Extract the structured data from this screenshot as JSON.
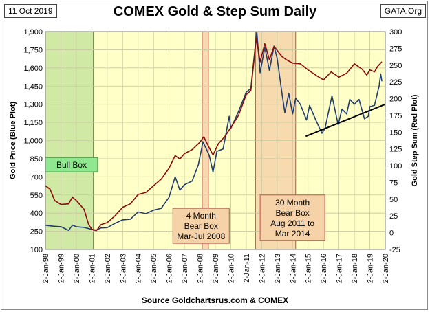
{
  "header": {
    "date": "11 Oct 2019",
    "site": "GATA.Org"
  },
  "footer": {
    "source": "Source Goldchartsrus.com & COMEX"
  },
  "colors": {
    "plot_bg": "#FFFFC8",
    "gold": "#1F3D6E",
    "step_sum": "#8B0A0A",
    "bull_box": "#C8E6A0",
    "bear_box": "#F5D2A8",
    "bear_box_border": "#C0504D"
  },
  "chart_data": {
    "type": "line",
    "title": "COMEX Gold & Step Sum Daily",
    "ylabel_left": "Gold Price    (Blue Plot)",
    "ylabel_right": "Gold Step Sum    (Red Plot)",
    "xlabel": "",
    "x_ticks": [
      "2-Jan-98",
      "2-Jan-99",
      "2-Jan-00",
      "2-Jan-01",
      "2-Jan-02",
      "2-Jan-03",
      "2-Jan-04",
      "2-Jan-05",
      "2-Jan-06",
      "2-Jan-07",
      "2-Jan-08",
      "2-Jan-09",
      "2-Jan-10",
      "2-Jan-11",
      "2-Jan-12",
      "2-Jan-13",
      "2-Jan-14",
      "2-Jan-15",
      "2-Jan-16",
      "2-Jan-17",
      "2-Jan-18",
      "2-Jan-19",
      "2-Jan-20"
    ],
    "x_range": [
      1998,
      2020
    ],
    "left_axis": {
      "range": [
        100,
        1900
      ],
      "ticks": [
        "100",
        "250",
        "400",
        "550",
        "700",
        "850",
        "1,000",
        "1,150",
        "1,300",
        "1,450",
        "1,600",
        "1,750",
        "1,900"
      ]
    },
    "right_axis": {
      "range": [
        -25,
        300
      ],
      "ticks": [
        "-25",
        "0",
        "25",
        "50",
        "75",
        "100",
        "125",
        "150",
        "175",
        "200",
        "225",
        "250",
        "275",
        "300"
      ]
    },
    "grid": true,
    "series": [
      {
        "name": "Gold Price",
        "axis": "left",
        "points": [
          [
            1998.0,
            300
          ],
          [
            1998.5,
            292
          ],
          [
            1999.0,
            288
          ],
          [
            1999.5,
            258
          ],
          [
            1999.75,
            300
          ],
          [
            2000.0,
            288
          ],
          [
            2000.5,
            282
          ],
          [
            2001.0,
            265
          ],
          [
            2001.3,
            260
          ],
          [
            2001.6,
            278
          ],
          [
            2002.0,
            280
          ],
          [
            2002.5,
            315
          ],
          [
            2003.0,
            345
          ],
          [
            2003.5,
            350
          ],
          [
            2004.0,
            410
          ],
          [
            2004.5,
            395
          ],
          [
            2005.0,
            425
          ],
          [
            2005.5,
            440
          ],
          [
            2006.0,
            530
          ],
          [
            2006.4,
            700
          ],
          [
            2006.7,
            590
          ],
          [
            2007.0,
            635
          ],
          [
            2007.5,
            665
          ],
          [
            2007.9,
            800
          ],
          [
            2008.2,
            990
          ],
          [
            2008.6,
            880
          ],
          [
            2008.85,
            740
          ],
          [
            2009.1,
            910
          ],
          [
            2009.5,
            930
          ],
          [
            2009.9,
            1200
          ],
          [
            2010.0,
            1100
          ],
          [
            2010.5,
            1240
          ],
          [
            2011.0,
            1400
          ],
          [
            2011.3,
            1430
          ],
          [
            2011.68,
            1900
          ],
          [
            2011.9,
            1560
          ],
          [
            2012.2,
            1770
          ],
          [
            2012.5,
            1580
          ],
          [
            2012.8,
            1780
          ],
          [
            2013.0,
            1680
          ],
          [
            2013.3,
            1400
          ],
          [
            2013.5,
            1230
          ],
          [
            2013.75,
            1390
          ],
          [
            2014.0,
            1220
          ],
          [
            2014.2,
            1350
          ],
          [
            2014.5,
            1300
          ],
          [
            2014.9,
            1170
          ],
          [
            2015.1,
            1290
          ],
          [
            2015.5,
            1170
          ],
          [
            2015.9,
            1060
          ],
          [
            2016.1,
            1100
          ],
          [
            2016.55,
            1370
          ],
          [
            2016.95,
            1130
          ],
          [
            2017.2,
            1260
          ],
          [
            2017.5,
            1220
          ],
          [
            2017.7,
            1340
          ],
          [
            2018.0,
            1300
          ],
          [
            2018.3,
            1340
          ],
          [
            2018.65,
            1180
          ],
          [
            2018.9,
            1200
          ],
          [
            2019.0,
            1280
          ],
          [
            2019.3,
            1290
          ],
          [
            2019.6,
            1450
          ],
          [
            2019.7,
            1550
          ],
          [
            2019.78,
            1490
          ]
        ]
      },
      {
        "name": "Gold Step Sum",
        "axis": "right",
        "points": [
          [
            1998.0,
            70
          ],
          [
            1998.3,
            65
          ],
          [
            1998.6,
            48
          ],
          [
            1999.0,
            42
          ],
          [
            1999.5,
            43
          ],
          [
            1999.75,
            53
          ],
          [
            2000.0,
            48
          ],
          [
            2000.5,
            35
          ],
          [
            2000.8,
            12
          ],
          [
            2001.0,
            5
          ],
          [
            2001.3,
            3
          ],
          [
            2001.6,
            12
          ],
          [
            2002.0,
            15
          ],
          [
            2002.5,
            25
          ],
          [
            2003.0,
            38
          ],
          [
            2003.5,
            43
          ],
          [
            2004.0,
            57
          ],
          [
            2004.5,
            60
          ],
          [
            2005.0,
            70
          ],
          [
            2005.5,
            80
          ],
          [
            2006.0,
            96
          ],
          [
            2006.4,
            115
          ],
          [
            2006.7,
            110
          ],
          [
            2007.0,
            118
          ],
          [
            2007.5,
            124
          ],
          [
            2008.0,
            135
          ],
          [
            2008.25,
            143
          ],
          [
            2008.6,
            127
          ],
          [
            2008.85,
            116
          ],
          [
            2009.2,
            133
          ],
          [
            2009.6,
            143
          ],
          [
            2010.0,
            157
          ],
          [
            2010.5,
            175
          ],
          [
            2011.0,
            206
          ],
          [
            2011.3,
            212
          ],
          [
            2011.65,
            290
          ],
          [
            2011.9,
            255
          ],
          [
            2012.2,
            282
          ],
          [
            2012.5,
            258
          ],
          [
            2012.8,
            278
          ],
          [
            2013.0,
            272
          ],
          [
            2013.3,
            263
          ],
          [
            2013.6,
            258
          ],
          [
            2014.0,
            253
          ],
          [
            2014.5,
            252
          ],
          [
            2015.0,
            243
          ],
          [
            2015.5,
            235
          ],
          [
            2016.0,
            228
          ],
          [
            2016.5,
            240
          ],
          [
            2017.0,
            232
          ],
          [
            2017.5,
            238
          ],
          [
            2018.0,
            252
          ],
          [
            2018.5,
            244
          ],
          [
            2018.8,
            235
          ],
          [
            2019.0,
            243
          ],
          [
            2019.3,
            240
          ],
          [
            2019.5,
            248
          ],
          [
            2019.78,
            255
          ]
        ]
      }
    ],
    "trend_line": {
      "axis": "left",
      "from": [
        2014.85,
        1035
      ],
      "to": [
        2020.0,
        1300
      ]
    },
    "boxes": [
      {
        "label": [
          "Bull Box"
        ],
        "kind": "bull",
        "x_from": 1998.0,
        "x_to": 2001.1,
        "label_x": 1998.0,
        "label_y": 860
      },
      {
        "label": [
          "4 Month",
          "Bear Box",
          "Mar-Jul 2008"
        ],
        "kind": "bear",
        "x_from": 2008.15,
        "x_to": 2008.55,
        "label_x": 2006.25,
        "label_y": 440
      },
      {
        "label": [
          "30 Month",
          "Bear Box",
          "Aug 2011 to",
          "Mar 2014"
        ],
        "kind": "bear",
        "x_from": 2011.6,
        "x_to": 2014.2,
        "label_x": 2011.9,
        "label_y": 550
      }
    ]
  }
}
